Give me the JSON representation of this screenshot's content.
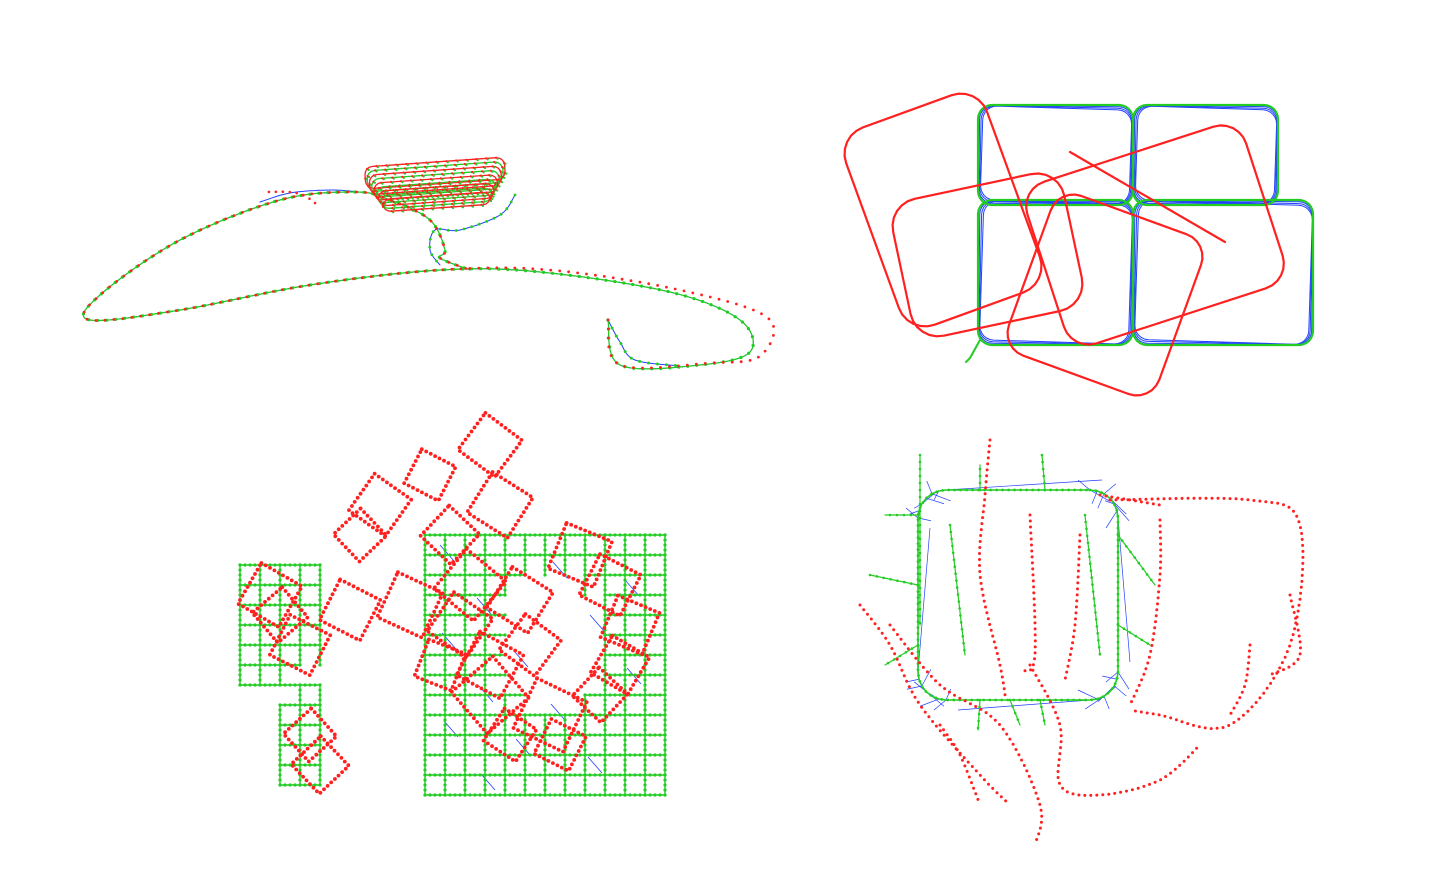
{
  "figure": {
    "panels": [
      {
        "id": "top-left",
        "kind": "dotted-pose-graph"
      },
      {
        "id": "top-right",
        "kind": "continuous-trajectory"
      },
      {
        "id": "bottom-left",
        "kind": "manhattan-grid"
      },
      {
        "id": "bottom-right",
        "kind": "indoor-dotted-graph"
      }
    ],
    "colors": {
      "initial_estimate": "#ff2020",
      "optimized": "#22cc22",
      "constraints": "#2040ff",
      "background": "#ffffff"
    }
  }
}
